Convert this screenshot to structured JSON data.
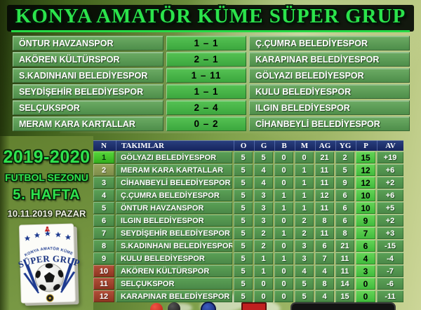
{
  "meta": {
    "league_title": "KONYA AMATÖR KÜME SÜPER GRUP"
  },
  "sidebar": {
    "season": "2019-2020",
    "season_label": "FUTBOL SEZONU",
    "week": "5. HAFTA",
    "date": "10.11.2019 PAZAR",
    "logo": {
      "league": "KONYA AMATÖR KÜME",
      "group": "SÜPER GRUP"
    }
  },
  "chart_data": [
    {
      "type": "table",
      "name": "match_results_week5",
      "columns": [
        "HOME",
        "SCORE",
        "AWAY"
      ],
      "rows": [
        [
          "ÖNTUR HAVZANSPOR",
          "1 – 1",
          "Ç.ÇUMRA BELEDİYESPOR"
        ],
        [
          "AKÖREN KÜLTÜRSPOR",
          "2 – 1",
          "KARAPINAR BELEDİYESPOR"
        ],
        [
          "S.KADINHANI BELEDİYESPOR",
          "1 – 11",
          "GÖLYAZI BELEDİYESPOR"
        ],
        [
          "SEYDİŞEHİR BELEDİYESPOR",
          "1 – 1",
          "KULU BELEDİYESPOR"
        ],
        [
          "SELÇUKSPOR",
          "2 – 4",
          "ILGIN BELEDİYESPOR"
        ],
        [
          "MERAM KARA KARTALLAR",
          "0 – 2",
          "CİHANBEYLİ BELEDİYESPOR"
        ]
      ]
    },
    {
      "type": "table",
      "name": "league_standings",
      "columns": [
        "N",
        "TAKIMLAR",
        "O",
        "G",
        "B",
        "M",
        "AG",
        "YG",
        "P",
        "AV"
      ],
      "rows": [
        [
          1,
          "GÖLYAZI BELEDİYESPOR",
          5,
          5,
          0,
          0,
          21,
          2,
          15,
          "+19"
        ],
        [
          2,
          "MERAM KARA KARTALLAR",
          5,
          4,
          0,
          1,
          11,
          5,
          12,
          "+6"
        ],
        [
          3,
          "CİHANBEYLİ BELEDİYESPOR",
          5,
          4,
          0,
          1,
          11,
          9,
          12,
          "+2"
        ],
        [
          4,
          "Ç.ÇUMRA BELEDİYESPOR",
          5,
          3,
          1,
          1,
          12,
          6,
          10,
          "+6"
        ],
        [
          5,
          "ÖNTUR HAVZANSPOR",
          5,
          3,
          1,
          1,
          11,
          6,
          10,
          "+5"
        ],
        [
          6,
          "ILGIN BELEDİYESPOR",
          5,
          3,
          0,
          2,
          8,
          6,
          9,
          "+2"
        ],
        [
          7,
          "SEYDİŞEHİR BELEDİYESPOR",
          5,
          2,
          1,
          2,
          11,
          8,
          7,
          "+3"
        ],
        [
          8,
          "S.KADINHANI BELEDİYESPOR",
          5,
          2,
          0,
          3,
          6,
          21,
          6,
          "-15"
        ],
        [
          9,
          "KULU BELEDİYESPOR",
          5,
          1,
          1,
          3,
          7,
          11,
          4,
          "-4"
        ],
        [
          10,
          "AKÖREN KÜLTÜRSPOR",
          5,
          1,
          0,
          4,
          4,
          11,
          3,
          "-7"
        ],
        [
          11,
          "SELÇUKSPOR",
          5,
          0,
          0,
          5,
          8,
          14,
          0,
          "-6"
        ],
        [
          12,
          "KARAPINAR BELEDİYESPOR",
          5,
          0,
          0,
          5,
          4,
          15,
          0,
          "-11"
        ]
      ],
      "row_zones": [
        "top",
        "second",
        "mid",
        "mid",
        "mid",
        "mid",
        "mid",
        "mid",
        "mid",
        "relegation",
        "relegation",
        "relegation"
      ]
    }
  ],
  "colors": {
    "title_green": "#2BE34B",
    "banner_black": "#050A04",
    "result_cell_green": "#579B53",
    "score_cell_green": "#45B247",
    "header_navy": "#18296B",
    "rank_top_green": "#3FC627",
    "rank_second_olive": "#8C9C52",
    "rank_relegation_red": "#A33A24",
    "points_green": "#4FCB42",
    "logo_navy": "#1D3A8F",
    "logo_red": "#C32222"
  },
  "footer": {
    "partial_icons": [
      "red-circle-icon",
      "black-circle-icon",
      "blue-circle-icon",
      "red-flag-icon",
      "black-banner-bar"
    ]
  }
}
